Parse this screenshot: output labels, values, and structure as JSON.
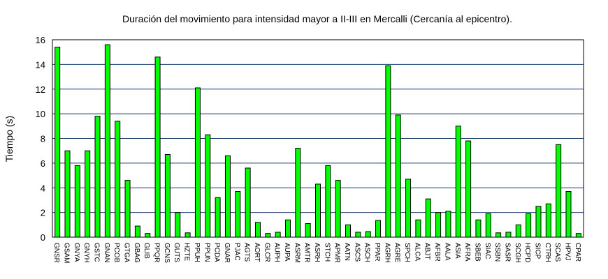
{
  "chart_data": {
    "type": "bar",
    "title": "Duración del movimiento para intensidad mayor a II-III en Mercalli (Cercanía al epicentro).",
    "xlabel": "",
    "ylabel": "Tiempo (s)",
    "ylim": [
      0,
      16
    ],
    "yticks": [
      0,
      2,
      4,
      6,
      8,
      10,
      12,
      14,
      16
    ],
    "grid": true,
    "bar_color": "#00ff00",
    "grid_color": "#1f3b6f",
    "categories": [
      "GNSR",
      "GSAM",
      "GNYA",
      "GNYH",
      "GSTC",
      "GNAN",
      "PCOB",
      "GTGA",
      "GBAG",
      "GLIB",
      "PPQR",
      "GCNS",
      "GUTS",
      "HZTE",
      "PPUH",
      "PPUN",
      "PCDA",
      "GNAR",
      "PJAC",
      "AGTS",
      "AORT",
      "GLCR",
      "AUPH",
      "AUPA",
      "ASRM",
      "AMTR",
      "ASRH",
      "STCH",
      "APMR",
      "AATN",
      "ASCS",
      "ASCH",
      "PPAR",
      "AGRH",
      "AGRE",
      "SPCH",
      "ALCA",
      "ABJT",
      "AFBR",
      "AALA",
      "ASIA",
      "AFRA",
      "SBEB",
      "SIAC",
      "SSBN",
      "SASR",
      "SCGH",
      "HCPD",
      "SICP",
      "CTRH",
      "SCAS",
      "HPVJ",
      "CPAR"
    ],
    "values": [
      15.4,
      7.0,
      5.8,
      7.0,
      9.8,
      15.6,
      9.4,
      4.6,
      0.9,
      0.3,
      14.6,
      6.7,
      2.0,
      0.35,
      12.1,
      8.3,
      3.2,
      6.6,
      3.7,
      5.6,
      1.2,
      0.3,
      0.4,
      1.4,
      7.2,
      1.1,
      4.3,
      5.8,
      4.6,
      1.0,
      0.4,
      0.45,
      1.35,
      13.9,
      9.9,
      4.7,
      1.4,
      3.1,
      2.0,
      2.1,
      9.0,
      7.8,
      1.4,
      1.9,
      0.35,
      0.4,
      1.0,
      1.9,
      2.5,
      2.7,
      7.5,
      3.7,
      0.3
    ]
  }
}
